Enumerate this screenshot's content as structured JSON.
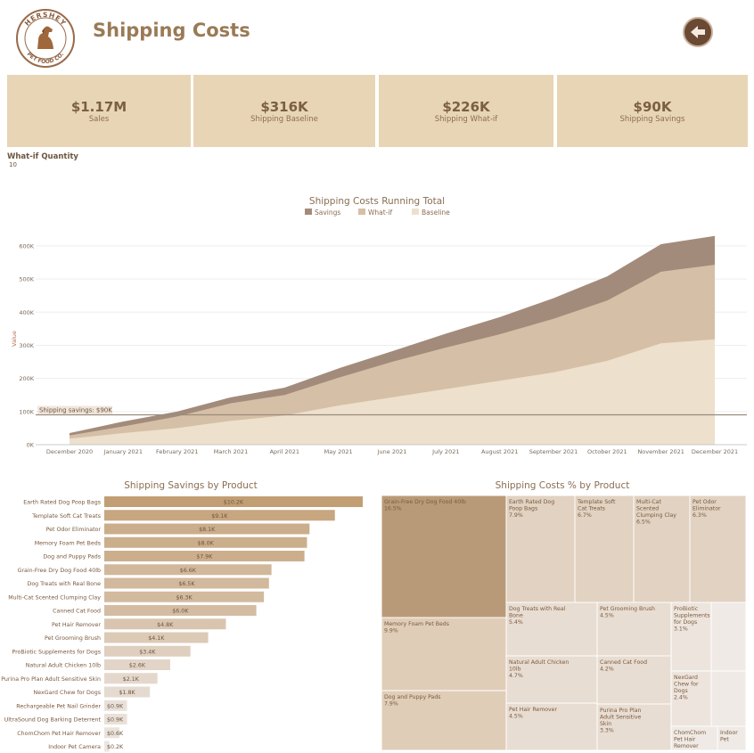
{
  "header": {
    "title": "Shipping Costs",
    "logo_text_top": "HERSHEY",
    "logo_text_bottom": "PET FOOD CO.",
    "back_icon": "back-arrow-icon"
  },
  "kpis": [
    {
      "value": "$1.17M",
      "label": "Sales"
    },
    {
      "value": "$316K",
      "label": "Shipping Baseline"
    },
    {
      "value": "$226K",
      "label": "Shipping What-if"
    },
    {
      "value": "$90K",
      "label": "Shipping Savings"
    }
  ],
  "whatif": {
    "label": "What-if Quantity",
    "value": "10"
  },
  "colors": {
    "kpi_bg": "#e8d5b5",
    "savings": "#a38b7b",
    "whatif": "#d5bfa6",
    "baseline": "#ede0cc",
    "bar_dark": "#c29e74",
    "bar_light": "#ede7e3"
  },
  "chart_data": [
    {
      "type": "area",
      "title": "Shipping Costs Running Total",
      "ylabel": "Value",
      "xlabel": "",
      "legend_position": "top",
      "ylim": [
        0,
        640000
      ],
      "y_ticks": [
        "0K",
        "100K",
        "200K",
        "300K",
        "400K",
        "500K",
        "600K"
      ],
      "y_tick_values": [
        0,
        100000,
        200000,
        300000,
        400000,
        500000,
        600000
      ],
      "x_ticks": [
        "December 2020",
        "January 2021",
        "February 2021",
        "March 2021",
        "April 2021",
        "May 2021",
        "June 2021",
        "July 2021",
        "August 2021",
        "September 2021",
        "October 2021",
        "November 2021",
        "December 2021"
      ],
      "series": [
        {
          "name": "Savings",
          "values": [
            35000,
            70000,
            100000,
            143000,
            172000,
            230000,
            282000,
            335000,
            385000,
            442000,
            508000,
            605000,
            630000
          ]
        },
        {
          "name": "What-if",
          "values": [
            28000,
            55000,
            85000,
            125000,
            150000,
            202000,
            250000,
            293000,
            333000,
            380000,
            435000,
            522000,
            543000
          ]
        },
        {
          "name": "Baseline",
          "values": [
            18000,
            35000,
            50000,
            72000,
            88000,
            118000,
            143000,
            168000,
            193000,
            218000,
            253000,
            306000,
            318000
          ]
        }
      ],
      "reference_line": {
        "label": "Shipping savings: $90K",
        "value": 90000
      }
    },
    {
      "type": "bar",
      "title": "Shipping Savings by Product",
      "categories": [
        "Earth Rated Dog Poop Bags",
        "Template Soft Cat Treats",
        "Pet Odor Eliminator",
        "Memory Foam Pet Beds",
        "Dog and Puppy Pads",
        "Grain-Free Dry Dog Food 40lb",
        "Dog Treats with Real Bone",
        "Multi-Cat Scented Clumping Clay",
        "Canned Cat Food",
        "Pet Hair Remover",
        "Pet Grooming Brush",
        "ProBiotic Supplements for Dogs",
        "Natural Adult Chicken 10lb",
        "Purina Pro Plan Adult Sensitive Skin",
        "NexGard Chew for Dogs",
        "Rechargeable Pet Nail Grinder",
        "UltraSound Dog Barking Deterrent",
        "ChomChom Pet Hair Remover",
        "Indoor Pet Camera"
      ],
      "values": [
        10.2,
        9.1,
        8.1,
        8.0,
        7.9,
        6.6,
        6.5,
        6.3,
        6.0,
        4.8,
        4.1,
        3.4,
        2.6,
        2.1,
        1.8,
        0.9,
        0.9,
        0.6,
        0.2
      ],
      "labels": [
        "$10.2K",
        "$9.1K",
        "$8.1K",
        "$8.0K",
        "$7.9K",
        "$6.6K",
        "$6.5K",
        "$6.3K",
        "$6.0K",
        "$4.8K",
        "$4.1K",
        "$3.4K",
        "$2.6K",
        "$2.1K",
        "$1.8K",
        "$0.9K",
        "$0.9K",
        "$0.6K",
        "$0.2K"
      ]
    },
    {
      "type": "heatmap",
      "title": "Shipping Costs % by Product",
      "cells": [
        {
          "name": "Grain-Free Dry Dog Food 40lb",
          "pct": "16.5%"
        },
        {
          "name": "Memory Foam Pet Beds",
          "pct": "9.9%"
        },
        {
          "name": "Dog and Puppy Pads",
          "pct": "7.9%"
        },
        {
          "name": "Earth Rated Dog Poop Bags",
          "pct": "7.9%"
        },
        {
          "name": "Template Soft Cat Treats",
          "pct": "6.7%"
        },
        {
          "name": "Multi-Cat Scented Clumping Clay",
          "pct": "6.5%"
        },
        {
          "name": "Pet Odor Eliminator",
          "pct": "6.3%"
        },
        {
          "name": "Dog Treats with Real Bone",
          "pct": "5.4%"
        },
        {
          "name": "Pet Grooming Brush",
          "pct": "4.5%"
        },
        {
          "name": "ProBiotic Supplements for Dogs",
          "pct": "3.1%"
        },
        {
          "name": "Natural Adult Chicken 10lb",
          "pct": "4.7%"
        },
        {
          "name": "Canned Cat Food",
          "pct": "4.2%"
        },
        {
          "name": "NexGard Chew for Dogs",
          "pct": "2.4%"
        },
        {
          "name": "Pet Hair Remover",
          "pct": "4.5%"
        },
        {
          "name": "Purina Pro Plan Adult Sensitive Skin",
          "pct": "3.3%"
        },
        {
          "name": "ChomChom Pet Hair Remover",
          "pct": ""
        },
        {
          "name": "Indoor Pet",
          "pct": ""
        },
        {
          "name": "",
          "pct": ""
        },
        {
          "name": "",
          "pct": ""
        },
        {
          "name": "",
          "pct": ""
        }
      ]
    }
  ]
}
